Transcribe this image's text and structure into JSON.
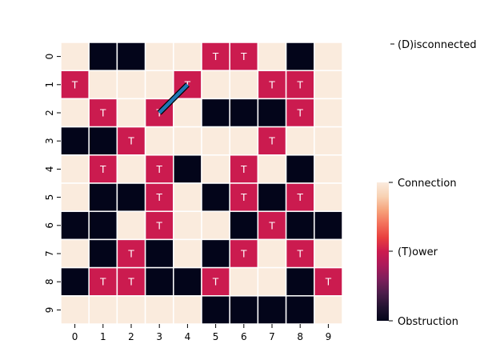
{
  "chart_data": {
    "type": "heatmap",
    "rows": [
      "0",
      "1",
      "2",
      "3",
      "4",
      "5",
      "6",
      "7",
      "8",
      "9"
    ],
    "cols": [
      "0",
      "1",
      "2",
      "3",
      "4",
      "5",
      "6",
      "7",
      "8",
      "9"
    ],
    "grid": [
      [
        "C",
        "O",
        "O",
        "C",
        "C",
        "T",
        "T",
        "C",
        "O",
        "C"
      ],
      [
        "T",
        "C",
        "C",
        "C",
        "T",
        "C",
        "C",
        "T",
        "T",
        "C"
      ],
      [
        "C",
        "T",
        "C",
        "T",
        "C",
        "O",
        "O",
        "O",
        "T",
        "C"
      ],
      [
        "O",
        "O",
        "T",
        "C",
        "C",
        "C",
        "C",
        "T",
        "C",
        "C"
      ],
      [
        "C",
        "T",
        "C",
        "T",
        "O",
        "C",
        "T",
        "C",
        "O",
        "C"
      ],
      [
        "C",
        "O",
        "O",
        "T",
        "C",
        "O",
        "T",
        "O",
        "T",
        "C"
      ],
      [
        "O",
        "O",
        "C",
        "T",
        "C",
        "C",
        "O",
        "T",
        "O",
        "O"
      ],
      [
        "C",
        "O",
        "T",
        "O",
        "C",
        "O",
        "T",
        "C",
        "T",
        "C"
      ],
      [
        "O",
        "T",
        "T",
        "O",
        "O",
        "T",
        "C",
        "C",
        "O",
        "T"
      ],
      [
        "C",
        "C",
        "C",
        "C",
        "C",
        "O",
        "O",
        "O",
        "O",
        "C"
      ]
    ],
    "cell_text": {
      "T": "T",
      "C": "",
      "O": ""
    },
    "colors": {
      "C": "#faebdd",
      "T": "#cb1b4f",
      "O": "#03051a"
    },
    "colorbar": {
      "stops": [
        "#03051a",
        "#221331",
        "#4c1d4b",
        "#7d1e5b",
        "#ab1a5a",
        "#cb1b4f",
        "#e83f3f",
        "#f3705a",
        "#f6a47c",
        "#f8d2b4",
        "#faebdd"
      ],
      "labels": {
        "top": "Connection",
        "mid": "(T)ower",
        "bottom": "Obstruction"
      }
    },
    "legend": {
      "position": "top-right",
      "label": "(D)isconnected"
    },
    "connections": [
      {
        "from": [
          2,
          3
        ],
        "to": [
          1,
          4
        ],
        "color": "#1f77b4"
      }
    ]
  }
}
